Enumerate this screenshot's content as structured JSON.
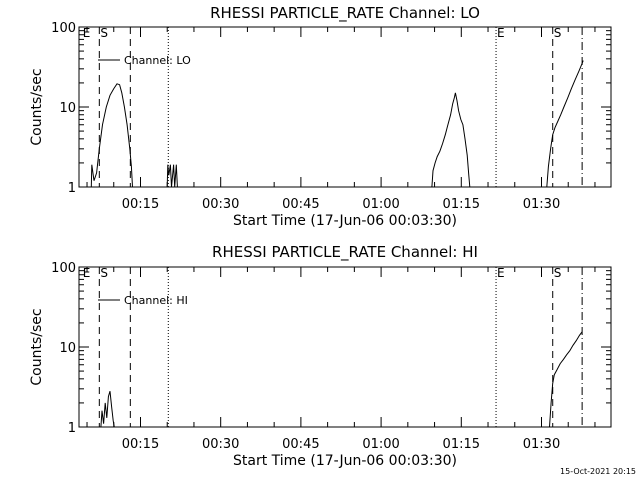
{
  "footer_timestamp": "15-Oct-2021 20:15",
  "chart_data": [
    {
      "type": "line",
      "title": "RHESSI PARTICLE_RATE Channel: LO",
      "xlabel": "Start Time (17-Jun-06 00:03:30)",
      "ylabel": "Counts/sec",
      "yscale": "log",
      "ylim": [
        1,
        100
      ],
      "xlim_minutes": [
        3.5,
        103
      ],
      "yticks": [
        {
          "v": 1,
          "label": "1"
        },
        {
          "v": 10,
          "label": "10"
        },
        {
          "v": 100,
          "label": "100"
        }
      ],
      "xticks": [
        {
          "v": 15,
          "label": "00:15"
        },
        {
          "v": 30,
          "label": "00:30"
        },
        {
          "v": 45,
          "label": "00:45"
        },
        {
          "v": 60,
          "label": "01:00"
        },
        {
          "v": 75,
          "label": "01:15"
        },
        {
          "v": 90,
          "label": "01:30"
        }
      ],
      "legend": {
        "label": "Channel: LO",
        "position": "top-left"
      },
      "markers": [
        {
          "x": 7.3,
          "style": "dashed",
          "label": "S"
        },
        {
          "x": 13.1,
          "style": "dashed",
          "label": ""
        },
        {
          "x": 20.2,
          "style": "dotted",
          "label": ""
        },
        {
          "x": 81.5,
          "style": "dotted",
          "label": "E"
        },
        {
          "x": 92.1,
          "style": "dashed",
          "label": "S"
        },
        {
          "x": 97.6,
          "style": "dashdot",
          "label": ""
        }
      ],
      "edge_labels": [
        {
          "x": 4.2,
          "label": "E"
        }
      ],
      "series": [
        {
          "segments": [
            [
              [
                5.8,
                1
              ],
              [
                5.9,
                1.9
              ],
              [
                6.3,
                1.2
              ],
              [
                6.8,
                1.5
              ],
              [
                7.3,
                3
              ],
              [
                7.9,
                6
              ],
              [
                8.6,
                10
              ],
              [
                9.3,
                14
              ],
              [
                10,
                17
              ],
              [
                10.6,
                19.5
              ],
              [
                11.1,
                19
              ],
              [
                11.5,
                15
              ],
              [
                12,
                10
              ],
              [
                12.5,
                6
              ],
              [
                13,
                3
              ],
              [
                13.3,
                1.8
              ],
              [
                13.5,
                1
              ]
            ],
            [
              [
                20,
                1
              ],
              [
                20.1,
                1.9
              ],
              [
                20.3,
                1.4
              ],
              [
                20.6,
                1.9
              ],
              [
                20.8,
                1
              ],
              [
                21.2,
                1.9
              ],
              [
                21.4,
                1
              ],
              [
                21.7,
                1.9
              ],
              [
                21.9,
                1
              ]
            ],
            [
              [
                69.5,
                1
              ],
              [
                69.7,
                1.6
              ],
              [
                70.1,
                2
              ],
              [
                70.5,
                2.4
              ],
              [
                71,
                2.8
              ],
              [
                71.5,
                3.5
              ],
              [
                72,
                4.5
              ],
              [
                72.5,
                6
              ],
              [
                73,
                8
              ],
              [
                73.4,
                11
              ],
              [
                73.7,
                13
              ],
              [
                73.9,
                15
              ],
              [
                74.2,
                12
              ],
              [
                74.5,
                9
              ],
              [
                74.9,
                7
              ],
              [
                75.3,
                6
              ],
              [
                75.7,
                4
              ],
              [
                76.1,
                2.5
              ],
              [
                76.4,
                1.4
              ],
              [
                76.6,
                1
              ]
            ],
            [
              [
                91,
                1
              ],
              [
                91.3,
                1.8
              ],
              [
                91.7,
                3
              ],
              [
                92.1,
                4.5
              ],
              [
                92.5,
                5.5
              ],
              [
                93,
                6.5
              ],
              [
                93.6,
                8
              ],
              [
                94.2,
                10
              ],
              [
                94.9,
                13
              ],
              [
                95.6,
                17
              ],
              [
                96.3,
                22
              ],
              [
                97,
                28
              ],
              [
                97.6,
                35
              ],
              [
                97.8,
                38
              ]
            ]
          ]
        }
      ]
    },
    {
      "type": "line",
      "title": "RHESSI PARTICLE_RATE Channel: HI",
      "xlabel": "Start Time (17-Jun-06 00:03:30)",
      "ylabel": "Counts/sec",
      "yscale": "log",
      "ylim": [
        1,
        100
      ],
      "xlim_minutes": [
        3.5,
        103
      ],
      "yticks": [
        {
          "v": 1,
          "label": "1"
        },
        {
          "v": 10,
          "label": "10"
        },
        {
          "v": 100,
          "label": "100"
        }
      ],
      "xticks": [
        {
          "v": 15,
          "label": "00:15"
        },
        {
          "v": 30,
          "label": "00:30"
        },
        {
          "v": 45,
          "label": "00:45"
        },
        {
          "v": 60,
          "label": "01:00"
        },
        {
          "v": 75,
          "label": "01:15"
        },
        {
          "v": 90,
          "label": "01:30"
        }
      ],
      "legend": {
        "label": "Channel: HI",
        "position": "top-left"
      },
      "markers": [
        {
          "x": 7.3,
          "style": "dashed",
          "label": "S"
        },
        {
          "x": 13.1,
          "style": "dashed",
          "label": ""
        },
        {
          "x": 20.2,
          "style": "dotted",
          "label": ""
        },
        {
          "x": 81.5,
          "style": "dotted",
          "label": "E"
        },
        {
          "x": 92.1,
          "style": "dashed",
          "label": "S"
        },
        {
          "x": 97.6,
          "style": "dashdot",
          "label": ""
        }
      ],
      "edge_labels": [
        {
          "x": 4.2,
          "label": "E"
        }
      ],
      "series": [
        {
          "segments": [
            [
              [
                7.6,
                1
              ],
              [
                7.8,
                1.6
              ],
              [
                8.1,
                1.1
              ],
              [
                8.4,
                2
              ],
              [
                8.7,
                1.3
              ],
              [
                9,
                2.4
              ],
              [
                9.3,
                2.8
              ],
              [
                9.6,
                1.8
              ],
              [
                9.9,
                1.2
              ],
              [
                10.1,
                1
              ]
            ],
            [
              [
                91.5,
                1
              ],
              [
                91.8,
                2
              ],
              [
                92.1,
                3.5
              ],
              [
                92.4,
                4.5
              ],
              [
                92.9,
                5.2
              ],
              [
                93.5,
                6.2
              ],
              [
                94.1,
                7
              ],
              [
                94.7,
                8
              ],
              [
                95.3,
                9
              ],
              [
                95.9,
                10.5
              ],
              [
                96.5,
                12
              ],
              [
                97.1,
                14
              ],
              [
                97.6,
                15.5
              ]
            ]
          ]
        }
      ]
    }
  ]
}
